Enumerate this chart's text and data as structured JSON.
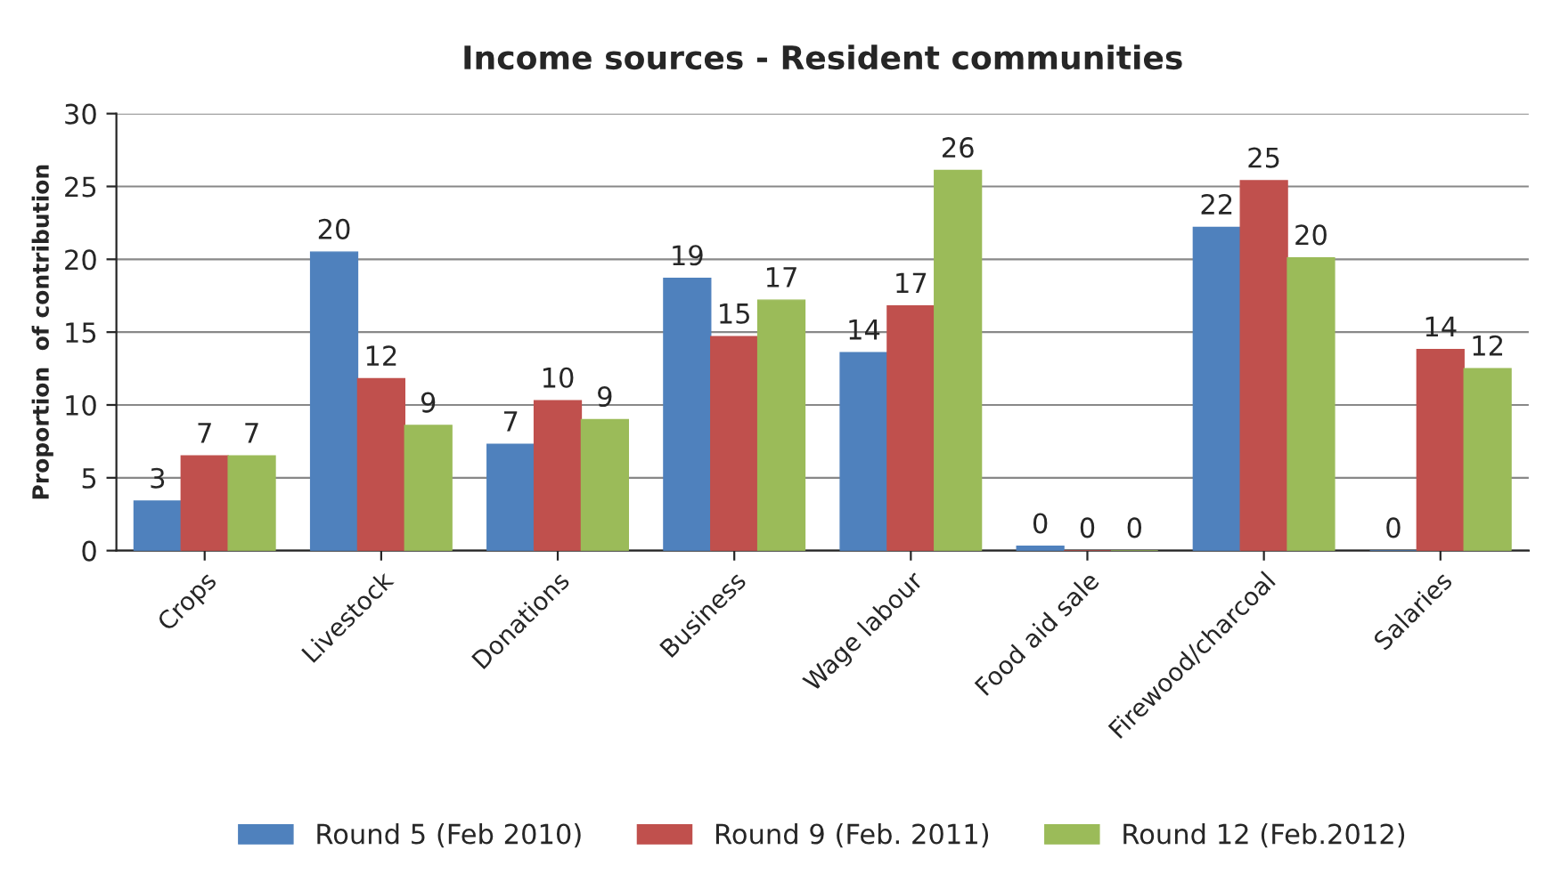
{
  "chart_data": {
    "type": "bar",
    "title": "Income sources - Resident communities",
    "ylabel": "Proportion  of contribution",
    "categories": [
      "Crops",
      "Livestock",
      "Donations",
      "Business",
      "Wage labour",
      "Food aid sale",
      "Firewood/charcoal",
      "Salaries"
    ],
    "series": [
      {
        "name": "Round 5 (Feb 2010)",
        "color": "#4f81bd",
        "values": [
          3.4,
          20.5,
          7.3,
          18.7,
          13.6,
          0.3,
          22.2,
          0
        ],
        "value_labels": [
          "3",
          "20",
          "7",
          "19",
          "14",
          "0",
          "22",
          "0"
        ]
      },
      {
        "name": "Round 9 (Feb. 2011)",
        "color": "#c0504d",
        "values": [
          6.5,
          11.8,
          10.3,
          14.7,
          16.8,
          0,
          25.4,
          13.8
        ],
        "value_labels": [
          "7",
          "12",
          "10",
          "15",
          "17",
          "0",
          "25",
          "14"
        ]
      },
      {
        "name": "Round 12 (Feb.2012)",
        "color": "#9bbb59",
        "values": [
          6.5,
          8.6,
          9.0,
          17.2,
          26.1,
          0,
          20.1,
          12.5
        ],
        "value_labels": [
          "7",
          "9",
          "9",
          "17",
          "26",
          "0",
          "20",
          "12"
        ]
      }
    ],
    "ylim": [
      0,
      30
    ],
    "yticks": [
      0,
      5,
      10,
      15,
      20,
      25,
      30
    ],
    "grid": "y",
    "legend": "bottom"
  }
}
